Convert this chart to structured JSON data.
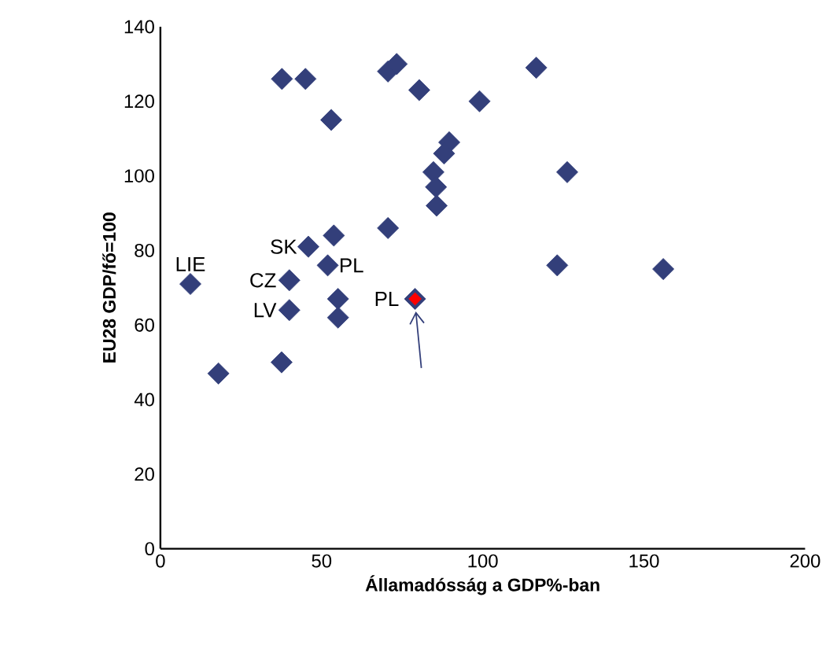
{
  "chart_data": {
    "type": "scatter",
    "xlabel": "Államadósság a GDP%-ban",
    "ylabel": "EU28 GDP/fő=100",
    "xlim": [
      0,
      200
    ],
    "ylim": [
      0,
      140
    ],
    "xticks": [
      0,
      50,
      100,
      150,
      200
    ],
    "yticks": [
      0,
      20,
      40,
      60,
      80,
      100,
      120,
      140
    ],
    "grid": false,
    "marker": "diamond",
    "series": [
      {
        "color": "#333f7a",
        "x": [
          37.7,
          45.0,
          70.6,
          73.3,
          80.3,
          99.0,
          53.0,
          89.6,
          88.0,
          84.7,
          85.5,
          85.7,
          70.6,
          53.8,
          45.9,
          51.9,
          9.3,
          40.0,
          55.1,
          79.0,
          40.0,
          55.1,
          18.0,
          37.6,
          116.6,
          126.2,
          123.1,
          156.0
        ],
        "values": [
          126,
          126,
          128,
          130,
          123,
          120,
          115,
          109,
          106,
          101,
          97,
          92,
          86,
          84,
          81,
          76,
          71,
          72,
          67,
          67,
          64,
          62,
          47,
          50,
          129,
          101,
          76,
          75
        ]
      },
      {
        "color": "#ff0000",
        "x": [
          79.0
        ],
        "values": [
          67
        ]
      }
    ],
    "annotations": [
      {
        "text": "LIE",
        "x": 9.3,
        "y": 71
      },
      {
        "text": "SK",
        "x": 45.9,
        "y": 81
      },
      {
        "text": "PL",
        "x": 51.9,
        "y": 76
      },
      {
        "text": "CZ",
        "x": 40.0,
        "y": 72
      },
      {
        "text": "LV",
        "x": 40.0,
        "y": 64
      },
      {
        "text": "PL",
        "x": 79.0,
        "y": 67
      }
    ]
  }
}
